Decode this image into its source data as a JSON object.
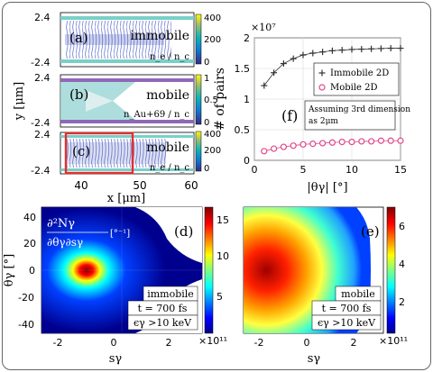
{
  "panels": {
    "a": {
      "tag": "(a)",
      "mode": "immobile",
      "quantity": "n_e / n_c",
      "cbar_ticks": [
        "400",
        "200",
        "0"
      ]
    },
    "b": {
      "tag": "(b)",
      "mode": "mobile",
      "quantity": "n_Au+69 / n_c",
      "cbar_ticks": [
        "1",
        "0.5",
        "0"
      ]
    },
    "c": {
      "tag": "(c)",
      "mode": "mobile",
      "quantity": "n_e / n_c",
      "cbar_ticks": [
        "400",
        "200",
        "0"
      ]
    },
    "y_ticks": [
      "2.4",
      "-2.4"
    ],
    "y_label": "y [μm]",
    "x_ticks": [
      "40",
      "50",
      "60"
    ],
    "x_label": "x [μm]"
  },
  "chart_data": {
    "type": "line",
    "tag": "(f)",
    "exponent_label": "×10⁷",
    "ylabel": "# of pairs",
    "xlabel": "|θγ| [°]",
    "xlim": [
      0,
      15
    ],
    "ylim": [
      0,
      2
    ],
    "x_ticks": [
      "0",
      "5",
      "10",
      "15"
    ],
    "y_ticks": [
      "0",
      "0.5",
      "1",
      "1.5",
      "2"
    ],
    "annotation_line1": "Assuming 3rd dimension",
    "annotation_line2": "as 2μm",
    "grid": true,
    "legend_position": "top-right",
    "series": [
      {
        "name": "Immobile 2D",
        "color": "#333333",
        "marker": "plus",
        "x": [
          1,
          2,
          3,
          4,
          5,
          6,
          7,
          8,
          9,
          10,
          11,
          12,
          13,
          14,
          15
        ],
        "values": [
          1.22,
          1.43,
          1.58,
          1.66,
          1.72,
          1.75,
          1.77,
          1.79,
          1.8,
          1.81,
          1.815,
          1.82,
          1.825,
          1.83,
          1.83
        ]
      },
      {
        "name": "Mobile 2D",
        "color": "#e0478b",
        "marker": "circle",
        "x": [
          1,
          2,
          3,
          4,
          5,
          6,
          7,
          8,
          9,
          10,
          11,
          12,
          13,
          14,
          15
        ],
        "values": [
          0.15,
          0.19,
          0.22,
          0.24,
          0.26,
          0.27,
          0.28,
          0.29,
          0.3,
          0.3,
          0.31,
          0.31,
          0.32,
          0.32,
          0.32
        ]
      }
    ]
  },
  "spectra": {
    "d": {
      "tag": "(d)",
      "mode": "immobile",
      "time": "t = 700 fs",
      "energy": "ϵγ >10 keV",
      "cbar_ticks": [
        "15",
        "10",
        "5"
      ],
      "exponent": "×10¹¹",
      "formula_num": "∂²Nγ",
      "formula_den": "∂θγ∂sγ",
      "formula_unit": "[°⁻¹]"
    },
    "e": {
      "tag": "(e)",
      "mode": "mobile",
      "time": "t = 700 fs",
      "energy": "ϵγ >10 keV",
      "cbar_ticks": [
        "6",
        "4",
        "2"
      ],
      "exponent": "×10¹¹"
    },
    "y_label": "θγ [°]",
    "y_ticks": [
      "40",
      "20",
      "0",
      "-20",
      "-40"
    ],
    "x_label": "sγ",
    "x_ticks": [
      "-2",
      "0",
      "2"
    ]
  },
  "colors": {
    "jet_blue": "#0000a0",
    "jet_red": "#b00000",
    "highlight_box": "#e03030",
    "mobile_marker": "#e0478b"
  }
}
